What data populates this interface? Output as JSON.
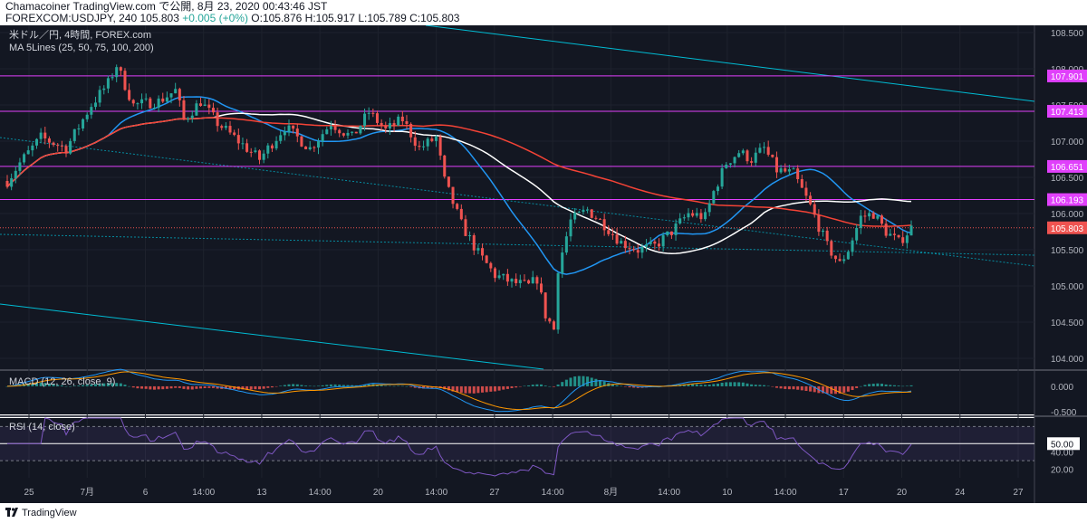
{
  "header": {
    "line1": "Chamacoiner TradingView.com で公開, 8月 23, 2020 00:43:46 JST",
    "symbol_info": "FOREXCOM:USDJPY, 240 105.803",
    "change": "+0.005 (+0%)",
    "ohlc": "O:105.876 H:105.917 L:105.789 C:105.803"
  },
  "legend": {
    "title": "米ドル／円, 4時間, FOREX.com",
    "ma": "MA 5Lines (25, 50, 75, 100, 200)",
    "macd": "MACD (12, 26, close, 9)",
    "rsi": "RSI (14, close)"
  },
  "footer": {
    "brand": "TradingView"
  },
  "colors": {
    "background": "#131722",
    "bull": "#26a69a",
    "bear": "#ef5350",
    "ma_blue": "#2196f3",
    "ma_red": "#f44336",
    "ma_white": "#ffffff",
    "level": "#e040fb",
    "trend": "#00bcd4",
    "rsi": "#7e57c2"
  },
  "chart_data": {
    "type": "candlestick",
    "symbol": "FOREXCOM:USDJPY",
    "timeframe": "240",
    "x_tick_labels": [
      "25",
      "7月",
      "6",
      "14:00",
      "13",
      "14:00",
      "20",
      "14:00",
      "27",
      "14:00",
      "8月",
      "14:00",
      "10",
      "14:00",
      "17",
      "20",
      "24",
      "27"
    ],
    "y_tick_labels": [
      "108.500",
      "108.000",
      "107.500",
      "107.000",
      "106.500",
      "106.000",
      "105.500",
      "105.000",
      "104.500",
      "104.000"
    ],
    "ylim": [
      103.85,
      108.6
    ],
    "price_labels": [
      {
        "text": "107.901",
        "value": 107.901
      },
      {
        "text": "107.413",
        "value": 107.413
      },
      {
        "text": "106.651",
        "value": 106.651
      },
      {
        "text": "106.193",
        "value": 106.193
      },
      {
        "text": "105.803",
        "value": 105.803
      }
    ],
    "waypoints": [
      [
        0,
        106.45
      ],
      [
        3,
        106.7
      ],
      [
        8,
        107.05
      ],
      [
        14,
        106.9
      ],
      [
        20,
        107.5
      ],
      [
        24,
        107.8
      ],
      [
        26,
        108.05
      ],
      [
        30,
        107.5
      ],
      [
        36,
        107.55
      ],
      [
        40,
        107.7
      ],
      [
        42,
        107.3
      ],
      [
        46,
        107.55
      ],
      [
        50,
        107.25
      ],
      [
        55,
        107.0
      ],
      [
        60,
        106.75
      ],
      [
        66,
        107.2
      ],
      [
        72,
        106.9
      ],
      [
        77,
        107.25
      ],
      [
        82,
        107.05
      ],
      [
        86,
        107.4
      ],
      [
        90,
        107.15
      ],
      [
        94,
        107.3
      ],
      [
        98,
        106.9
      ],
      [
        102,
        107.05
      ],
      [
        104,
        106.45
      ],
      [
        108,
        105.85
      ],
      [
        112,
        105.45
      ],
      [
        116,
        105.15
      ],
      [
        120,
        105.05
      ],
      [
        124,
        105.0
      ],
      [
        126,
        105.1
      ],
      [
        128,
        104.6
      ],
      [
        130,
        104.4
      ],
      [
        131,
        105.25
      ],
      [
        134,
        105.9
      ],
      [
        138,
        106.05
      ],
      [
        142,
        105.85
      ],
      [
        146,
        105.6
      ],
      [
        150,
        105.5
      ],
      [
        154,
        105.55
      ],
      [
        158,
        105.75
      ],
      [
        162,
        106.0
      ],
      [
        166,
        105.95
      ],
      [
        168,
        106.3
      ],
      [
        171,
        106.7
      ],
      [
        174,
        106.85
      ],
      [
        177,
        106.75
      ],
      [
        180,
        106.9
      ],
      [
        183,
        106.6
      ],
      [
        187,
        106.55
      ],
      [
        191,
        106.1
      ],
      [
        195,
        105.55
      ],
      [
        198,
        105.3
      ],
      [
        200,
        105.5
      ],
      [
        203,
        105.95
      ],
      [
        206,
        106.0
      ],
      [
        209,
        105.75
      ],
      [
        212,
        105.6
      ],
      [
        215,
        105.8
      ]
    ],
    "n_candles": 216,
    "ma_lines": [
      {
        "period": 25,
        "color": "#2196f3"
      },
      {
        "period": 50,
        "color": "#ffffff"
      },
      {
        "period": 100,
        "color": "#f44336"
      }
    ],
    "indicators": {
      "macd": {
        "params": [
          12,
          26,
          9
        ],
        "y_tick_labels": [
          "0.000",
          "-0.500"
        ],
        "ylim": [
          -0.55,
          0.3
        ]
      },
      "rsi": {
        "period": 14,
        "y_tick_labels": [
          "50.00",
          "40.00",
          "20.00"
        ],
        "levels": [
          30,
          70
        ],
        "current": 50.0,
        "ylim": [
          10,
          80
        ]
      }
    }
  }
}
